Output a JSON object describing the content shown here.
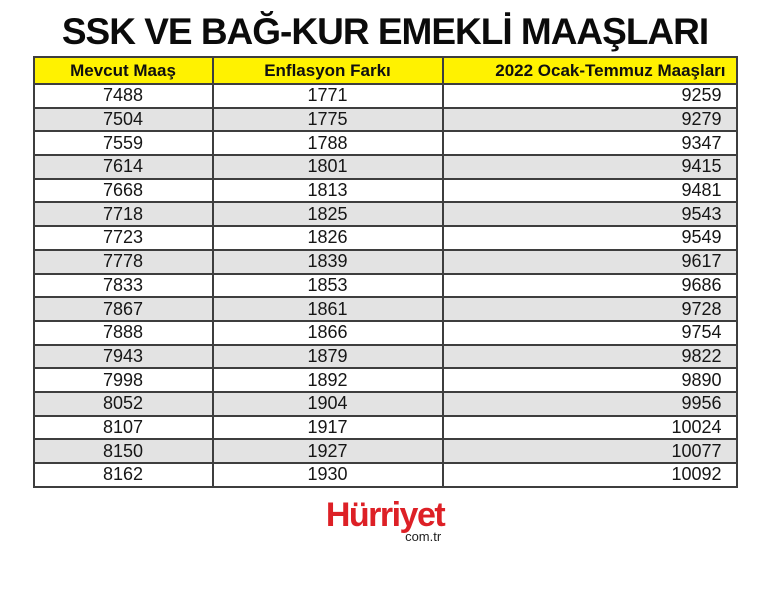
{
  "chart_data": {
    "type": "table",
    "title": "SSK VE BAĞ-KUR EMEKLİ MAAŞLARI",
    "columns": [
      "Mevcut Maaş",
      "Enflasyon Farkı",
      "2022 Ocak-Temmuz Maaşları"
    ],
    "rows": [
      [
        7488,
        1771,
        9259
      ],
      [
        7504,
        1775,
        9279
      ],
      [
        7559,
        1788,
        9347
      ],
      [
        7614,
        1801,
        9415
      ],
      [
        7668,
        1813,
        9481
      ],
      [
        7718,
        1825,
        9543
      ],
      [
        7723,
        1826,
        9549
      ],
      [
        7778,
        1839,
        9617
      ],
      [
        7833,
        1853,
        9686
      ],
      [
        7867,
        1861,
        9728
      ],
      [
        7888,
        1866,
        9754
      ],
      [
        7943,
        1879,
        9822
      ],
      [
        7998,
        1892,
        9890
      ],
      [
        8052,
        1904,
        9956
      ],
      [
        8107,
        1917,
        10024
      ],
      [
        8150,
        1927,
        10077
      ],
      [
        8162,
        1930,
        10092
      ]
    ],
    "layout": {
      "header_background": "yellow",
      "alternating_rows": true,
      "column_alignment": [
        "center",
        "center",
        "right"
      ],
      "grid": true
    }
  },
  "logo": {
    "brand": "Hürriyet",
    "domain": "com.tr"
  },
  "colors": {
    "header_yellow": "#FFF200",
    "row_alt_gray": "#E3E3E3",
    "border_gray": "#3E3E3E",
    "brand_red": "#DD2026",
    "title_ink": "#0B0B0B"
  }
}
